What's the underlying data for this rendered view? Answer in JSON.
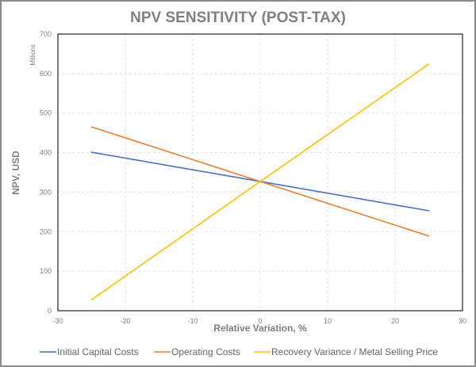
{
  "chart_data": {
    "type": "line",
    "title": "NPV SENSITIVITY (POST-TAX)",
    "xlabel": "Relative Variation, %",
    "ylabel": "NPV, USD",
    "y_unit_label": "Millions",
    "xlim": [
      -30,
      30
    ],
    "ylim": [
      0,
      700
    ],
    "xticks": [
      -30,
      -20,
      -10,
      0,
      10,
      20,
      30
    ],
    "yticks": [
      0,
      100,
      200,
      300,
      400,
      500,
      600,
      700
    ],
    "grid": true,
    "legend_position": "bottom",
    "x": [
      -25,
      0,
      25
    ],
    "series": [
      {
        "name": "Initial Capital Costs",
        "values": [
          401,
          327,
          253
        ],
        "color": "#4472c4"
      },
      {
        "name": "Operating Costs",
        "values": [
          465,
          327,
          189
        ],
        "color": "#ed7d31"
      },
      {
        "name": "Recovery Variance / Metal Selling Price",
        "values": [
          28,
          327,
          624
        ],
        "color": "#ffc000"
      }
    ]
  }
}
